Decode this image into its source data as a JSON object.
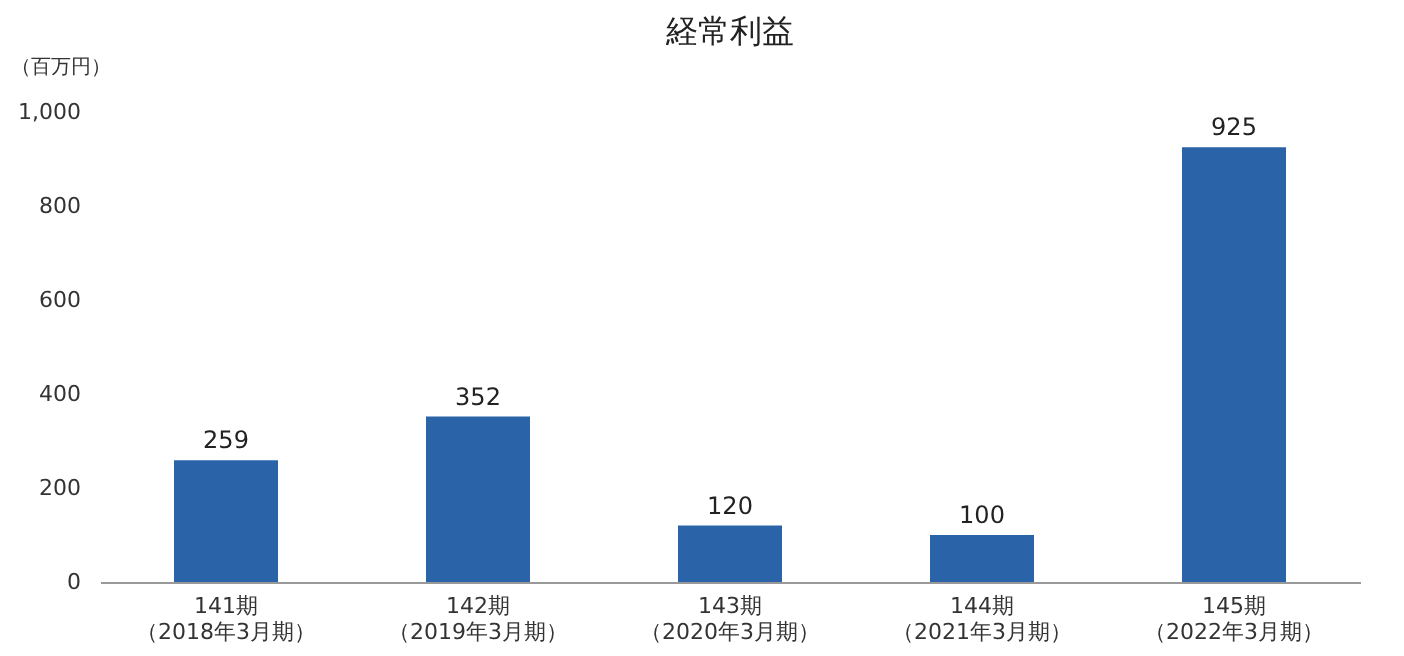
{
  "chart_data": {
    "type": "bar",
    "title": "経常利益",
    "ylabel": "（百万円）",
    "categories": [
      "141期（2018年3月期）",
      "142期（2019年3月期）",
      "143期（2020年3月期）",
      "144期（2021年3月期）",
      "145期（2022年3月期）"
    ],
    "values": [
      259,
      352,
      120,
      100,
      925
    ],
    "color": "#2a63a8",
    "ylim": [
      0,
      1000
    ],
    "yticks": [
      0,
      200,
      400,
      600,
      800,
      {
        "value": 1000,
        "label": "1,000"
      }
    ],
    "data_labels": true,
    "grid": false
  }
}
